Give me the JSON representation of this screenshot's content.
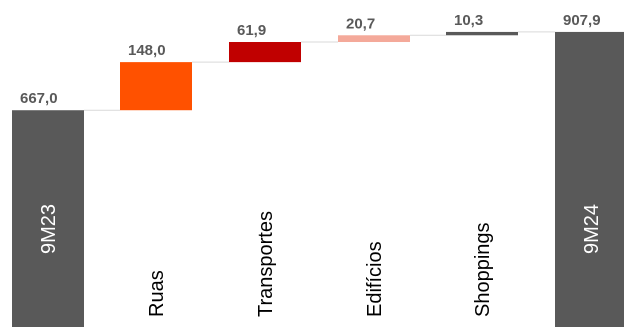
{
  "chart_data": {
    "type": "waterfall",
    "ylim": [
      0,
      1000
    ],
    "start": {
      "category": "9M23",
      "value": 667.0,
      "label": "667,0"
    },
    "steps": [
      {
        "category": "Ruas",
        "value": 148.0,
        "label": "148,0",
        "color": "#ff5100"
      },
      {
        "category": "Transportes",
        "value": 61.9,
        "label": "61,9",
        "color": "#c00000"
      },
      {
        "category": "Edifícios",
        "value": 20.7,
        "label": "20,7",
        "color": "#f4a99a"
      },
      {
        "category": "Shoppings",
        "value": 10.3,
        "label": "10,3",
        "color": "#595959"
      }
    ],
    "end": {
      "category": "9M24",
      "value": 907.9,
      "label": "907,9"
    },
    "total_color": "#595959",
    "connector_color": "#d9d9d9",
    "grid": false,
    "legend": "none"
  }
}
